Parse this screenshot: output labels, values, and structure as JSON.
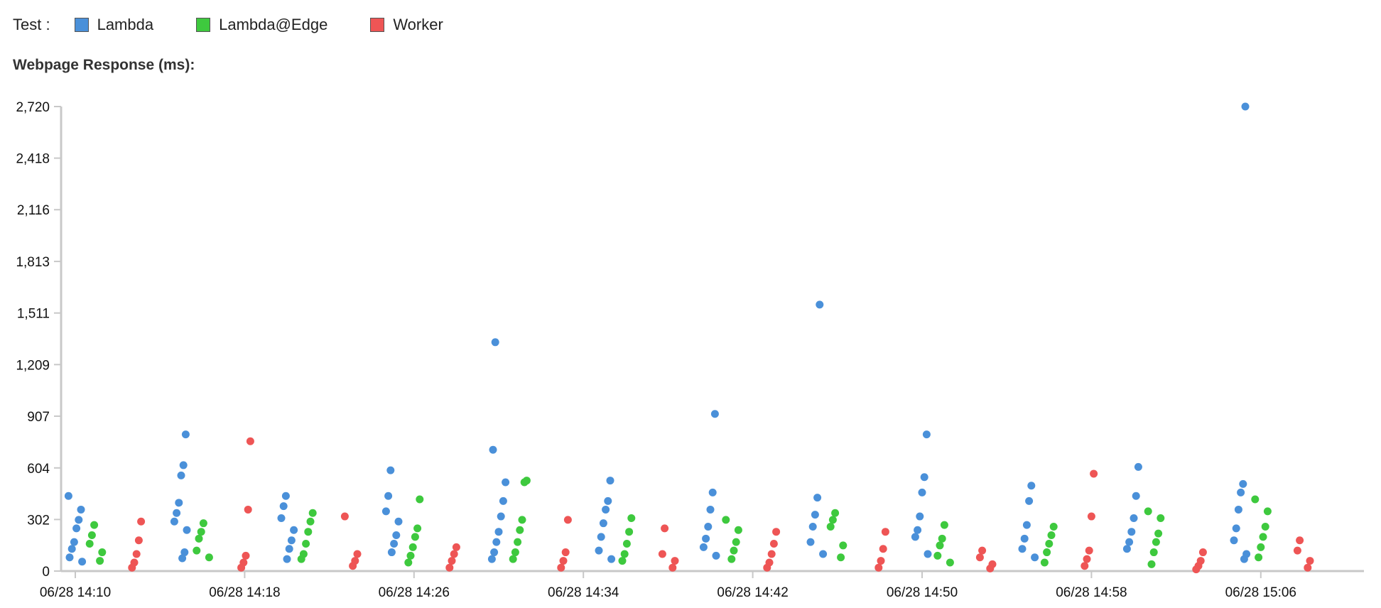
{
  "legend": {
    "title": "Test :",
    "items": [
      {
        "label": "Lambda",
        "color": "#4a90d9"
      },
      {
        "label": "Lambda@Edge",
        "color": "#3ec93e"
      },
      {
        "label": "Worker",
        "color": "#ee5555"
      }
    ]
  },
  "chart_data": {
    "type": "scatter",
    "title": "Webpage Response (ms):",
    "xlabel": "",
    "ylabel": "",
    "ylim": [
      0,
      2720
    ],
    "y_ticks": [
      0,
      302,
      604,
      907,
      1209,
      1511,
      1813,
      2116,
      2418,
      2720
    ],
    "y_tick_labels": [
      "0",
      "302",
      "604",
      "907",
      "1,209",
      "1,511",
      "1,813",
      "2,116",
      "2,418",
      "2,720"
    ],
    "x_ticks": [
      "06/28 14:10",
      "06/28 14:18",
      "06/28 14:26",
      "06/28 14:34",
      "06/28 14:42",
      "06/28 14:50",
      "06/28 14:58",
      "06/28 15:06"
    ],
    "xlim": [
      "06/28 14:10",
      "06/28 15:10"
    ],
    "grid": false,
    "legend_position": "top-left",
    "series": [
      {
        "name": "Lambda",
        "color": "#4a90d9",
        "points": [
          {
            "x": "06/28 14:10",
            "y": 440
          },
          {
            "x": "06/28 14:10",
            "y": 360
          },
          {
            "x": "06/28 14:10",
            "y": 300
          },
          {
            "x": "06/28 14:10",
            "y": 250
          },
          {
            "x": "06/28 14:10",
            "y": 170
          },
          {
            "x": "06/28 14:10",
            "y": 130
          },
          {
            "x": "06/28 14:10",
            "y": 80
          },
          {
            "x": "06/28 14:10",
            "y": 55
          },
          {
            "x": "06/28 14:15",
            "y": 800
          },
          {
            "x": "06/28 14:15",
            "y": 620
          },
          {
            "x": "06/28 14:15",
            "y": 560
          },
          {
            "x": "06/28 14:15",
            "y": 400
          },
          {
            "x": "06/28 14:15",
            "y": 340
          },
          {
            "x": "06/28 14:15",
            "y": 290
          },
          {
            "x": "06/28 14:15",
            "y": 240
          },
          {
            "x": "06/28 14:15",
            "y": 110
          },
          {
            "x": "06/28 14:15",
            "y": 75
          },
          {
            "x": "06/28 14:20",
            "y": 440
          },
          {
            "x": "06/28 14:20",
            "y": 380
          },
          {
            "x": "06/28 14:20",
            "y": 310
          },
          {
            "x": "06/28 14:20",
            "y": 240
          },
          {
            "x": "06/28 14:20",
            "y": 180
          },
          {
            "x": "06/28 14:20",
            "y": 130
          },
          {
            "x": "06/28 14:20",
            "y": 70
          },
          {
            "x": "06/28 14:25",
            "y": 590
          },
          {
            "x": "06/28 14:25",
            "y": 440
          },
          {
            "x": "06/28 14:25",
            "y": 350
          },
          {
            "x": "06/28 14:25",
            "y": 290
          },
          {
            "x": "06/28 14:25",
            "y": 210
          },
          {
            "x": "06/28 14:25",
            "y": 160
          },
          {
            "x": "06/28 14:25",
            "y": 110
          },
          {
            "x": "06/28 14:30",
            "y": 1340
          },
          {
            "x": "06/28 14:30",
            "y": 710
          },
          {
            "x": "06/28 14:30",
            "y": 520
          },
          {
            "x": "06/28 14:30",
            "y": 410
          },
          {
            "x": "06/28 14:30",
            "y": 320
          },
          {
            "x": "06/28 14:30",
            "y": 230
          },
          {
            "x": "06/28 14:30",
            "y": 170
          },
          {
            "x": "06/28 14:30",
            "y": 110
          },
          {
            "x": "06/28 14:30",
            "y": 70
          },
          {
            "x": "06/28 14:35",
            "y": 530
          },
          {
            "x": "06/28 14:35",
            "y": 410
          },
          {
            "x": "06/28 14:35",
            "y": 360
          },
          {
            "x": "06/28 14:35",
            "y": 280
          },
          {
            "x": "06/28 14:35",
            "y": 200
          },
          {
            "x": "06/28 14:35",
            "y": 120
          },
          {
            "x": "06/28 14:35",
            "y": 70
          },
          {
            "x": "06/28 14:40",
            "y": 920
          },
          {
            "x": "06/28 14:40",
            "y": 460
          },
          {
            "x": "06/28 14:40",
            "y": 360
          },
          {
            "x": "06/28 14:40",
            "y": 260
          },
          {
            "x": "06/28 14:40",
            "y": 190
          },
          {
            "x": "06/28 14:40",
            "y": 140
          },
          {
            "x": "06/28 14:40",
            "y": 90
          },
          {
            "x": "06/28 14:45",
            "y": 1560
          },
          {
            "x": "06/28 14:45",
            "y": 430
          },
          {
            "x": "06/28 14:45",
            "y": 330
          },
          {
            "x": "06/28 14:45",
            "y": 260
          },
          {
            "x": "06/28 14:45",
            "y": 170
          },
          {
            "x": "06/28 14:45",
            "y": 100
          },
          {
            "x": "06/28 14:50",
            "y": 800
          },
          {
            "x": "06/28 14:50",
            "y": 550
          },
          {
            "x": "06/28 14:50",
            "y": 460
          },
          {
            "x": "06/28 14:50",
            "y": 320
          },
          {
            "x": "06/28 14:50",
            "y": 240
          },
          {
            "x": "06/28 14:50",
            "y": 200
          },
          {
            "x": "06/28 14:50",
            "y": 100
          },
          {
            "x": "06/28 14:55",
            "y": 500
          },
          {
            "x": "06/28 14:55",
            "y": 410
          },
          {
            "x": "06/28 14:55",
            "y": 270
          },
          {
            "x": "06/28 14:55",
            "y": 190
          },
          {
            "x": "06/28 14:55",
            "y": 130
          },
          {
            "x": "06/28 14:55",
            "y": 80
          },
          {
            "x": "06/28 15:00",
            "y": 610
          },
          {
            "x": "06/28 15:00",
            "y": 440
          },
          {
            "x": "06/28 15:00",
            "y": 310
          },
          {
            "x": "06/28 15:00",
            "y": 230
          },
          {
            "x": "06/28 15:00",
            "y": 170
          },
          {
            "x": "06/28 15:00",
            "y": 130
          },
          {
            "x": "06/28 15:05",
            "y": 2720
          },
          {
            "x": "06/28 15:05",
            "y": 510
          },
          {
            "x": "06/28 15:05",
            "y": 460
          },
          {
            "x": "06/28 15:05",
            "y": 360
          },
          {
            "x": "06/28 15:05",
            "y": 250
          },
          {
            "x": "06/28 15:05",
            "y": 180
          },
          {
            "x": "06/28 15:05",
            "y": 100
          },
          {
            "x": "06/28 15:05",
            "y": 70
          }
        ]
      },
      {
        "name": "Lambda@Edge",
        "color": "#3ec93e",
        "points": [
          {
            "x": "06/28 14:11",
            "y": 270
          },
          {
            "x": "06/28 14:11",
            "y": 210
          },
          {
            "x": "06/28 14:11",
            "y": 160
          },
          {
            "x": "06/28 14:11",
            "y": 110
          },
          {
            "x": "06/28 14:11",
            "y": 60
          },
          {
            "x": "06/28 14:16",
            "y": 280
          },
          {
            "x": "06/28 14:16",
            "y": 230
          },
          {
            "x": "06/28 14:16",
            "y": 190
          },
          {
            "x": "06/28 14:16",
            "y": 120
          },
          {
            "x": "06/28 14:16",
            "y": 80
          },
          {
            "x": "06/28 14:21",
            "y": 340
          },
          {
            "x": "06/28 14:21",
            "y": 290
          },
          {
            "x": "06/28 14:21",
            "y": 230
          },
          {
            "x": "06/28 14:21",
            "y": 160
          },
          {
            "x": "06/28 14:21",
            "y": 100
          },
          {
            "x": "06/28 14:21",
            "y": 70
          },
          {
            "x": "06/28 14:26",
            "y": 420
          },
          {
            "x": "06/28 14:26",
            "y": 250
          },
          {
            "x": "06/28 14:26",
            "y": 200
          },
          {
            "x": "06/28 14:26",
            "y": 140
          },
          {
            "x": "06/28 14:26",
            "y": 90
          },
          {
            "x": "06/28 14:26",
            "y": 50
          },
          {
            "x": "06/28 14:31",
            "y": 530
          },
          {
            "x": "06/28 14:31",
            "y": 520
          },
          {
            "x": "06/28 14:31",
            "y": 300
          },
          {
            "x": "06/28 14:31",
            "y": 240
          },
          {
            "x": "06/28 14:31",
            "y": 170
          },
          {
            "x": "06/28 14:31",
            "y": 110
          },
          {
            "x": "06/28 14:31",
            "y": 70
          },
          {
            "x": "06/28 14:36",
            "y": 310
          },
          {
            "x": "06/28 14:36",
            "y": 230
          },
          {
            "x": "06/28 14:36",
            "y": 160
          },
          {
            "x": "06/28 14:36",
            "y": 100
          },
          {
            "x": "06/28 14:36",
            "y": 60
          },
          {
            "x": "06/28 14:41",
            "y": 300
          },
          {
            "x": "06/28 14:41",
            "y": 240
          },
          {
            "x": "06/28 14:41",
            "y": 170
          },
          {
            "x": "06/28 14:41",
            "y": 120
          },
          {
            "x": "06/28 14:41",
            "y": 70
          },
          {
            "x": "06/28 14:46",
            "y": 340
          },
          {
            "x": "06/28 14:46",
            "y": 300
          },
          {
            "x": "06/28 14:46",
            "y": 260
          },
          {
            "x": "06/28 14:46",
            "y": 150
          },
          {
            "x": "06/28 14:46",
            "y": 80
          },
          {
            "x": "06/28 14:51",
            "y": 270
          },
          {
            "x": "06/28 14:51",
            "y": 190
          },
          {
            "x": "06/28 14:51",
            "y": 150
          },
          {
            "x": "06/28 14:51",
            "y": 90
          },
          {
            "x": "06/28 14:51",
            "y": 50
          },
          {
            "x": "06/28 14:56",
            "y": 260
          },
          {
            "x": "06/28 14:56",
            "y": 210
          },
          {
            "x": "06/28 14:56",
            "y": 160
          },
          {
            "x": "06/28 14:56",
            "y": 110
          },
          {
            "x": "06/28 14:56",
            "y": 50
          },
          {
            "x": "06/28 15:01",
            "y": 350
          },
          {
            "x": "06/28 15:01",
            "y": 310
          },
          {
            "x": "06/28 15:01",
            "y": 220
          },
          {
            "x": "06/28 15:01",
            "y": 170
          },
          {
            "x": "06/28 15:01",
            "y": 110
          },
          {
            "x": "06/28 15:01",
            "y": 40
          },
          {
            "x": "06/28 15:06",
            "y": 420
          },
          {
            "x": "06/28 15:06",
            "y": 350
          },
          {
            "x": "06/28 15:06",
            "y": 260
          },
          {
            "x": "06/28 15:06",
            "y": 200
          },
          {
            "x": "06/28 15:06",
            "y": 140
          },
          {
            "x": "06/28 15:06",
            "y": 80
          }
        ]
      },
      {
        "name": "Worker",
        "color": "#ee5555",
        "points": [
          {
            "x": "06/28 14:13",
            "y": 290
          },
          {
            "x": "06/28 14:13",
            "y": 180
          },
          {
            "x": "06/28 14:13",
            "y": 100
          },
          {
            "x": "06/28 14:13",
            "y": 50
          },
          {
            "x": "06/28 14:13",
            "y": 20
          },
          {
            "x": "06/28 14:18",
            "y": 760
          },
          {
            "x": "06/28 14:18",
            "y": 360
          },
          {
            "x": "06/28 14:18",
            "y": 90
          },
          {
            "x": "06/28 14:18",
            "y": 50
          },
          {
            "x": "06/28 14:18",
            "y": 20
          },
          {
            "x": "06/28 14:23",
            "y": 320
          },
          {
            "x": "06/28 14:23",
            "y": 100
          },
          {
            "x": "06/28 14:23",
            "y": 60
          },
          {
            "x": "06/28 14:23",
            "y": 30
          },
          {
            "x": "06/28 14:28",
            "y": 140
          },
          {
            "x": "06/28 14:28",
            "y": 100
          },
          {
            "x": "06/28 14:28",
            "y": 60
          },
          {
            "x": "06/28 14:28",
            "y": 20
          },
          {
            "x": "06/28 14:33",
            "y": 300
          },
          {
            "x": "06/28 14:33",
            "y": 110
          },
          {
            "x": "06/28 14:33",
            "y": 60
          },
          {
            "x": "06/28 14:33",
            "y": 20
          },
          {
            "x": "06/28 14:38",
            "y": 250
          },
          {
            "x": "06/28 14:38",
            "y": 100
          },
          {
            "x": "06/28 14:38",
            "y": 60
          },
          {
            "x": "06/28 14:38",
            "y": 20
          },
          {
            "x": "06/28 14:43",
            "y": 230
          },
          {
            "x": "06/28 14:43",
            "y": 160
          },
          {
            "x": "06/28 14:43",
            "y": 100
          },
          {
            "x": "06/28 14:43",
            "y": 50
          },
          {
            "x": "06/28 14:43",
            "y": 20
          },
          {
            "x": "06/28 14:48",
            "y": 230
          },
          {
            "x": "06/28 14:48",
            "y": 130
          },
          {
            "x": "06/28 14:48",
            "y": 60
          },
          {
            "x": "06/28 14:48",
            "y": 20
          },
          {
            "x": "06/28 14:53",
            "y": 120
          },
          {
            "x": "06/28 14:53",
            "y": 80
          },
          {
            "x": "06/28 14:53",
            "y": 40
          },
          {
            "x": "06/28 14:53",
            "y": 15
          },
          {
            "x": "06/28 14:58",
            "y": 570
          },
          {
            "x": "06/28 14:58",
            "y": 320
          },
          {
            "x": "06/28 14:58",
            "y": 120
          },
          {
            "x": "06/28 14:58",
            "y": 70
          },
          {
            "x": "06/28 14:58",
            "y": 30
          },
          {
            "x": "06/28 15:03",
            "y": 110
          },
          {
            "x": "06/28 15:03",
            "y": 60
          },
          {
            "x": "06/28 15:03",
            "y": 30
          },
          {
            "x": "06/28 15:03",
            "y": 10
          },
          {
            "x": "06/28 15:08",
            "y": 180
          },
          {
            "x": "06/28 15:08",
            "y": 120
          },
          {
            "x": "06/28 15:08",
            "y": 60
          },
          {
            "x": "06/28 15:08",
            "y": 20
          }
        ]
      }
    ]
  }
}
